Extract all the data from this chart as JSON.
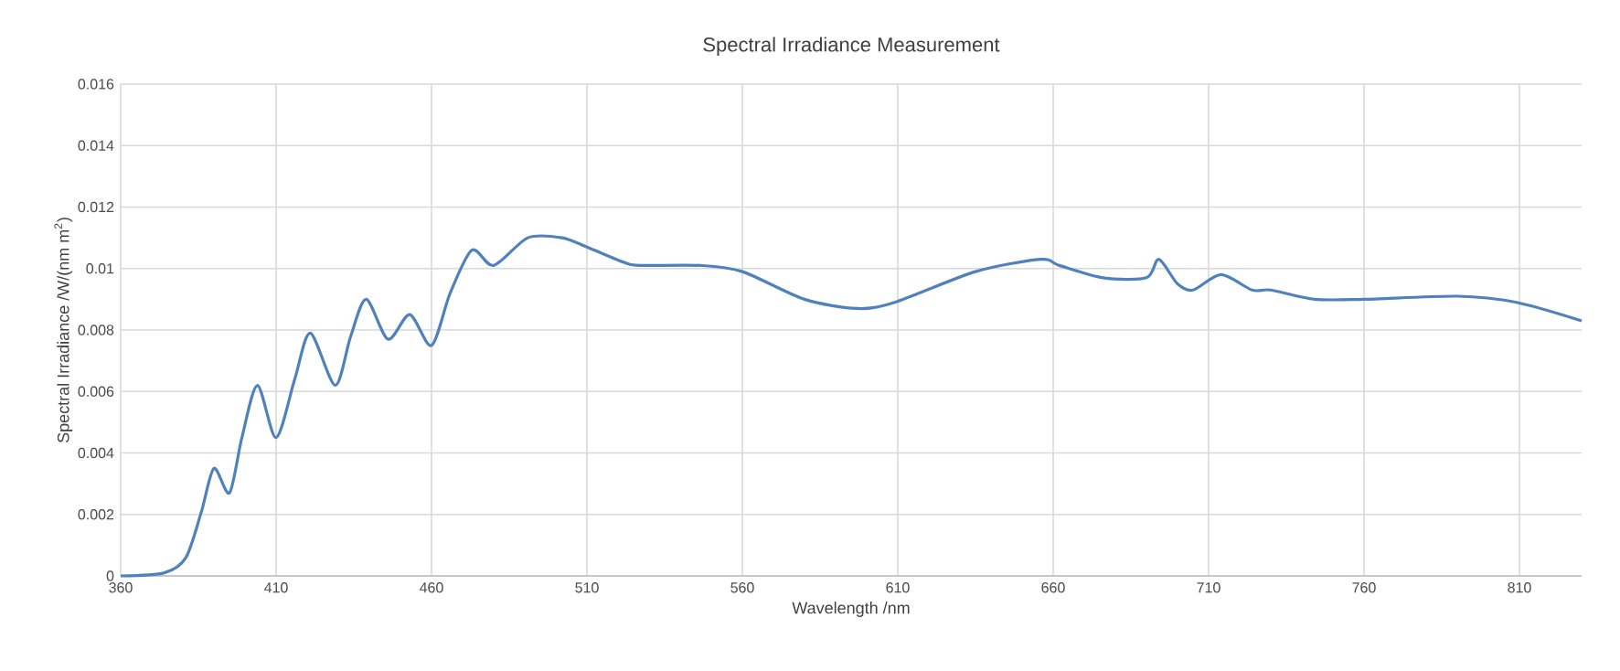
{
  "chart_data": {
    "type": "line",
    "title": "Spectral Irradiance Measurement",
    "xlabel": "Wavelength /nm",
    "ylabel": "Spectral Irradiance /W/(nm m$^{2}$)",
    "xlim": [
      360,
      830
    ],
    "xticks": [
      360,
      410,
      460,
      510,
      560,
      610,
      660,
      710,
      760,
      810
    ],
    "ylim": [
      0,
      0.016
    ],
    "yticks": [
      0,
      0.002,
      0.004,
      0.006,
      0.008,
      0.01,
      0.012,
      0.014,
      0.016
    ],
    "grid": true,
    "series": [
      {
        "color": "#4f81bd",
        "x": [
          360,
          374,
          381,
          386,
          390,
          395,
          399,
          404,
          410,
          416,
          421,
          429,
          434,
          439,
          446,
          453,
          460,
          466,
          473,
          480,
          491,
          502,
          510,
          522,
          527,
          546.5,
          560,
          580,
          597,
          609,
          635,
          656,
          662,
          676,
          690,
          694,
          700,
          705,
          714,
          724,
          730,
          744,
          760,
          790,
          809,
          830
        ],
        "values": [
          0,
          0.0001,
          0.0006,
          0.0021,
          0.0035,
          0.0027,
          0.0045,
          0.0062,
          0.0045,
          0.0064,
          0.0079,
          0.0062,
          0.0078,
          0.009,
          0.0077,
          0.0085,
          0.0075,
          0.0092,
          0.0106,
          0.0101,
          0.011,
          0.011,
          0.0107,
          0.0102,
          0.0101,
          0.0101,
          0.0099,
          0.009,
          0.0087,
          0.0089,
          0.0099,
          0.0103,
          0.0101,
          0.0097,
          0.0097,
          0.0103,
          0.0095,
          0.0093,
          0.0098,
          0.0093,
          0.0093,
          0.009,
          0.009,
          0.0091,
          0.0089,
          0.0083
        ]
      }
    ]
  }
}
